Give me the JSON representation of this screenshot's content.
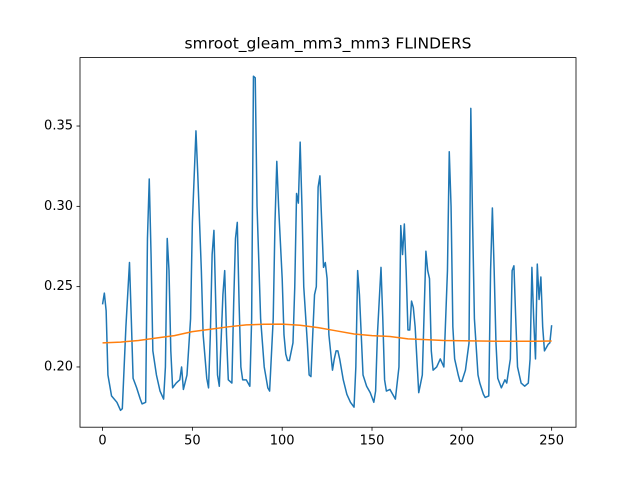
{
  "chart_data": {
    "type": "line",
    "title": "smroot_gleam_mm3_mm3 FLINDERS",
    "xlim": [
      -12.55,
      263.55
    ],
    "ylim": [
      0.1625,
      0.3926
    ],
    "xticks": [
      0,
      50,
      100,
      150,
      200,
      250
    ],
    "yticks": [
      {
        "value": 0.2,
        "label": "0.20"
      },
      0.25,
      {
        "value": 0.3,
        "label": "0.30"
      },
      0.35
    ],
    "grid": false,
    "series": [
      {
        "color": "#1f77b4",
        "x": [
          0,
          1,
          2,
          3,
          5,
          8,
          10,
          11,
          13,
          15,
          16,
          17,
          19,
          21,
          22,
          24,
          25,
          26,
          27,
          28,
          30,
          32,
          34,
          35,
          36,
          37,
          38,
          39,
          41,
          43,
          44,
          45,
          47,
          49,
          50,
          52,
          53,
          55,
          56,
          58,
          59,
          60,
          61,
          62,
          63,
          64,
          65,
          67,
          68,
          69,
          70,
          72,
          73,
          74,
          75,
          76,
          77,
          78,
          80,
          82,
          83,
          84,
          85,
          86,
          88,
          90,
          92,
          93,
          95,
          96,
          97,
          98,
          100,
          101,
          102,
          103,
          104,
          106,
          107,
          108,
          109,
          110,
          111,
          112,
          114,
          115,
          116,
          117,
          118,
          119,
          120,
          121,
          122,
          123,
          124,
          125,
          126,
          128,
          129,
          130,
          131,
          132,
          134,
          136,
          138,
          140,
          141,
          142,
          143,
          145,
          147,
          149,
          151,
          152,
          153,
          155,
          156,
          157,
          158,
          160,
          162,
          163,
          165,
          166,
          167,
          168,
          169,
          170,
          171,
          172,
          173,
          174,
          176,
          178,
          180,
          181,
          182,
          183,
          184,
          186,
          188,
          190,
          192,
          193,
          194,
          195,
          196,
          198,
          199,
          200,
          202,
          204,
          205,
          206,
          207,
          209,
          210,
          212,
          213,
          215,
          216,
          217,
          218,
          219,
          220,
          222,
          224,
          225,
          227,
          228,
          229,
          230,
          231,
          233,
          235,
          237,
          238,
          239,
          240,
          241,
          242,
          243,
          244,
          245,
          246,
          248,
          249,
          250
        ],
        "values": [
          0.239,
          0.246,
          0.235,
          0.195,
          0.182,
          0.178,
          0.173,
          0.174,
          0.225,
          0.265,
          0.23,
          0.193,
          0.187,
          0.18,
          0.177,
          0.178,
          0.28,
          0.317,
          0.27,
          0.21,
          0.195,
          0.185,
          0.18,
          0.2,
          0.28,
          0.26,
          0.21,
          0.187,
          0.19,
          0.192,
          0.2,
          0.186,
          0.195,
          0.23,
          0.29,
          0.347,
          0.32,
          0.26,
          0.22,
          0.193,
          0.187,
          0.22,
          0.27,
          0.285,
          0.24,
          0.195,
          0.188,
          0.245,
          0.26,
          0.22,
          0.192,
          0.19,
          0.24,
          0.28,
          0.29,
          0.24,
          0.2,
          0.192,
          0.192,
          0.188,
          0.23,
          0.381,
          0.38,
          0.3,
          0.23,
          0.2,
          0.187,
          0.185,
          0.23,
          0.29,
          0.328,
          0.3,
          0.255,
          0.22,
          0.208,
          0.204,
          0.204,
          0.215,
          0.25,
          0.308,
          0.302,
          0.34,
          0.3,
          0.25,
          0.215,
          0.195,
          0.194,
          0.22,
          0.245,
          0.25,
          0.312,
          0.319,
          0.29,
          0.262,
          0.265,
          0.255,
          0.22,
          0.198,
          0.205,
          0.21,
          0.21,
          0.205,
          0.192,
          0.183,
          0.178,
          0.175,
          0.2,
          0.26,
          0.245,
          0.195,
          0.188,
          0.184,
          0.178,
          0.185,
          0.22,
          0.262,
          0.23,
          0.192,
          0.185,
          0.186,
          0.182,
          0.18,
          0.2,
          0.288,
          0.27,
          0.289,
          0.26,
          0.223,
          0.223,
          0.241,
          0.237,
          0.225,
          0.184,
          0.195,
          0.272,
          0.26,
          0.255,
          0.21,
          0.198,
          0.2,
          0.205,
          0.2,
          0.26,
          0.334,
          0.3,
          0.225,
          0.205,
          0.195,
          0.191,
          0.191,
          0.198,
          0.215,
          0.361,
          0.29,
          0.23,
          0.195,
          0.19,
          0.183,
          0.181,
          0.182,
          0.26,
          0.299,
          0.26,
          0.215,
          0.193,
          0.187,
          0.192,
          0.19,
          0.205,
          0.26,
          0.263,
          0.23,
          0.2,
          0.19,
          0.188,
          0.19,
          0.205,
          0.262,
          0.23,
          0.205,
          0.264,
          0.242,
          0.256,
          0.225,
          0.21,
          0.214,
          0.215,
          0.226
        ]
      },
      {
        "color": "#ff7f0e",
        "x": [
          0,
          10,
          20,
          30,
          40,
          50,
          60,
          70,
          80,
          90,
          100,
          110,
          120,
          130,
          140,
          150,
          160,
          170,
          180,
          190,
          200,
          210,
          220,
          230,
          240,
          250
        ],
        "values": [
          0.215,
          0.2155,
          0.2165,
          0.218,
          0.2195,
          0.222,
          0.2235,
          0.225,
          0.2262,
          0.2266,
          0.2267,
          0.226,
          0.2245,
          0.2225,
          0.2205,
          0.2195,
          0.219,
          0.2175,
          0.217,
          0.2165,
          0.2163,
          0.2162,
          0.216,
          0.216,
          0.216,
          0.2162
        ]
      }
    ]
  }
}
